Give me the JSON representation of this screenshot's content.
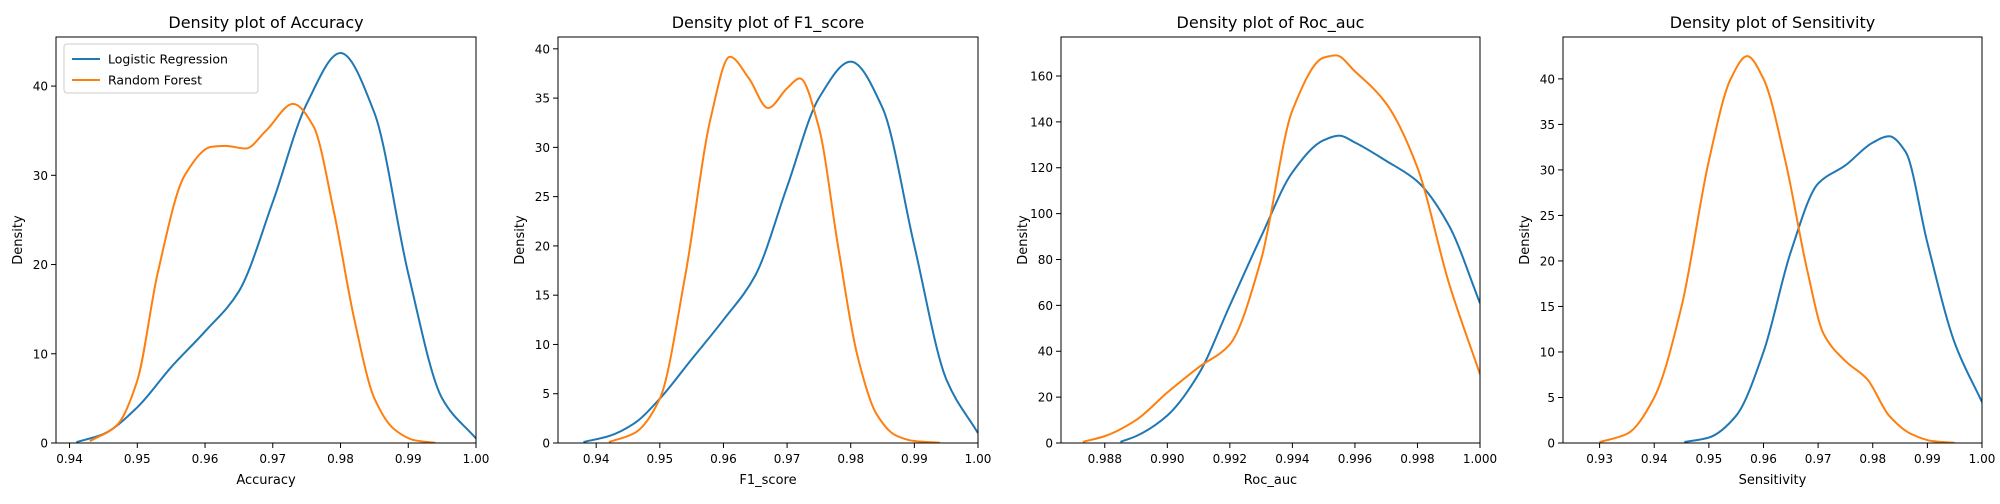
{
  "colors": {
    "logistic_regression": "#1f77b4",
    "random_forest": "#ff7f0e"
  },
  "chart_data": [
    {
      "type": "line",
      "title": "Density plot of Accuracy",
      "xlabel": "Accuracy",
      "ylabel": "Density",
      "xlim": [
        0.938,
        1.0
      ],
      "ylim": [
        0,
        45.5
      ],
      "xticks": [
        0.94,
        0.95,
        0.96,
        0.97,
        0.98,
        0.99,
        1.0
      ],
      "xtick_labels": [
        "0.94",
        "0.95",
        "0.96",
        "0.97",
        "0.98",
        "0.99",
        "1.00"
      ],
      "yticks": [
        0,
        10,
        20,
        30,
        40
      ],
      "ytick_labels": [
        "0",
        "10",
        "20",
        "30",
        "40"
      ],
      "legend": {
        "placement": "upper-left",
        "entries": [
          "Logistic Regression",
          "Random Forest"
        ]
      },
      "series": [
        {
          "name": "Logistic Regression",
          "color": "#1f77b4",
          "x": [
            0.941,
            0.945,
            0.95,
            0.955,
            0.96,
            0.965,
            0.97,
            0.975,
            0.98,
            0.985,
            0.99,
            0.995,
            1.0
          ],
          "y": [
            0.1,
            1,
            4,
            8.5,
            12.5,
            17,
            27,
            38,
            43.7,
            37,
            19,
            5,
            0.5
          ]
        },
        {
          "name": "Random Forest",
          "color": "#ff7f0e",
          "x": [
            0.943,
            0.947,
            0.95,
            0.953,
            0.957,
            0.961,
            0.963,
            0.966,
            0.969,
            0.973,
            0.976,
            0.979,
            0.982,
            0.985,
            0.988,
            0.991,
            0.994
          ],
          "y": [
            0.2,
            2,
            7,
            19,
            30,
            33.2,
            33.3,
            33,
            35,
            38,
            35.5,
            26,
            14,
            5,
            1.5,
            0.3,
            0.02
          ]
        }
      ]
    },
    {
      "type": "line",
      "title": "Density plot of F1_score",
      "xlabel": "F1_score",
      "ylabel": "Density",
      "xlim": [
        0.934,
        1.0
      ],
      "ylim": [
        0,
        41.2
      ],
      "xticks": [
        0.94,
        0.95,
        0.96,
        0.97,
        0.98,
        0.99,
        1.0
      ],
      "xtick_labels": [
        "0.94",
        "0.95",
        "0.96",
        "0.97",
        "0.98",
        "0.99",
        "1.00"
      ],
      "yticks": [
        0,
        5,
        10,
        15,
        20,
        25,
        30,
        35,
        40
      ],
      "ytick_labels": [
        "0",
        "5",
        "10",
        "15",
        "20",
        "25",
        "30",
        "35",
        "40"
      ],
      "series": [
        {
          "name": "Logistic Regression",
          "color": "#1f77b4",
          "x": [
            0.938,
            0.942,
            0.946,
            0.95,
            0.955,
            0.96,
            0.965,
            0.97,
            0.975,
            0.98,
            0.985,
            0.99,
            0.995,
            1.0
          ],
          "y": [
            0.1,
            0.7,
            2,
            4.5,
            8.5,
            12.5,
            17,
            26,
            35,
            38.7,
            34,
            20,
            6.5,
            1
          ]
        },
        {
          "name": "Random Forest",
          "color": "#ff7f0e",
          "x": [
            0.942,
            0.946,
            0.95,
            0.954,
            0.958,
            0.961,
            0.964,
            0.967,
            0.97,
            0.972,
            0.975,
            0.978,
            0.981,
            0.984,
            0.987,
            0.99,
            0.994
          ],
          "y": [
            0.1,
            1,
            4.5,
            17,
            33,
            39.2,
            37,
            34,
            36,
            37,
            32,
            20,
            9,
            3,
            0.8,
            0.2,
            0.02
          ]
        }
      ]
    },
    {
      "type": "line",
      "title": "Density plot of Roc_auc",
      "xlabel": "Roc_auc",
      "ylabel": "Density",
      "xlim": [
        0.9866,
        1.0
      ],
      "ylim": [
        0,
        177
      ],
      "xticks": [
        0.988,
        0.99,
        0.992,
        0.994,
        0.996,
        0.998,
        1.0
      ],
      "xtick_labels": [
        "0.988",
        "0.990",
        "0.992",
        "0.994",
        "0.996",
        "0.998",
        "1.000"
      ],
      "yticks": [
        0,
        20,
        40,
        60,
        80,
        100,
        120,
        140,
        160
      ],
      "ytick_labels": [
        "0",
        "20",
        "40",
        "60",
        "80",
        "100",
        "120",
        "140",
        "160"
      ],
      "series": [
        {
          "name": "Logistic Regression",
          "color": "#1f77b4",
          "x": [
            0.9885,
            0.989,
            0.99,
            0.991,
            0.992,
            0.993,
            0.994,
            0.995,
            0.9955,
            0.996,
            0.997,
            0.998,
            0.999,
            1.0
          ],
          "y": [
            0.5,
            3,
            12,
            30,
            60,
            90,
            118,
            132,
            134,
            131,
            123,
            114,
            95,
            61
          ]
        },
        {
          "name": "Random Forest",
          "color": "#ff7f0e",
          "x": [
            0.9873,
            0.988,
            0.989,
            0.99,
            0.991,
            0.992,
            0.993,
            0.994,
            0.995,
            0.9954,
            0.996,
            0.997,
            0.998,
            0.999,
            1.0
          ],
          "y": [
            0.5,
            3,
            10,
            22,
            33,
            43,
            80,
            145,
            168,
            169,
            162,
            148,
            120,
            70,
            30
          ]
        }
      ]
    },
    {
      "type": "line",
      "title": "Density plot of Sensitivity",
      "xlabel": "Sensitivity",
      "ylabel": "Density",
      "xlim": [
        0.9233,
        1.0
      ],
      "ylim": [
        0,
        44.6
      ],
      "xticks": [
        0.93,
        0.94,
        0.95,
        0.96,
        0.97,
        0.98,
        0.99,
        1.0
      ],
      "xtick_labels": [
        "0.93",
        "0.94",
        "0.95",
        "0.96",
        "0.97",
        "0.98",
        "0.99",
        "1.00"
      ],
      "yticks": [
        0,
        5,
        10,
        15,
        20,
        25,
        30,
        35,
        40
      ],
      "ytick_labels": [
        "0",
        "5",
        "10",
        "15",
        "20",
        "25",
        "30",
        "35",
        "40"
      ],
      "series": [
        {
          "name": "Logistic Regression",
          "color": "#1f77b4",
          "x": [
            0.9455,
            0.95,
            0.955,
            0.96,
            0.965,
            0.97,
            0.975,
            0.98,
            0.983,
            0.986,
            0.99,
            0.995,
            1.0
          ],
          "y": [
            0.1,
            0.6,
            3,
            10,
            21,
            28.5,
            30.5,
            33,
            33.7,
            32,
            22,
            11,
            4.5
          ]
        },
        {
          "name": "Random Forest",
          "color": "#ff7f0e",
          "x": [
            0.93,
            0.935,
            0.94,
            0.945,
            0.95,
            0.954,
            0.957,
            0.96,
            0.964,
            0.968,
            0.971,
            0.975,
            0.979,
            0.983,
            0.987,
            0.991,
            0.995
          ],
          "y": [
            0.1,
            1,
            5,
            15,
            31,
            40,
            42.5,
            40,
            31,
            19,
            12,
            9,
            7,
            3,
            1,
            0.2,
            0.02
          ]
        }
      ]
    }
  ]
}
